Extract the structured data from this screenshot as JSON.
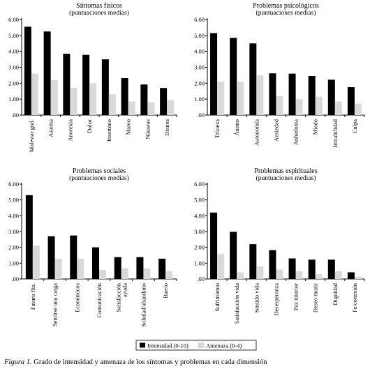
{
  "chart_data": [
    {
      "type": "bar",
      "title": "Síntomas físicos",
      "subtitle": "(puntuaciones medias)",
      "categories": [
        "Malestar gral.",
        "Astenia",
        "Anorexia",
        "Dolor",
        "Insomnio",
        "Mareo",
        "Náuseas",
        "Disnea"
      ],
      "series": [
        {
          "name": "Intensidad (0-10)",
          "values": [
            5.55,
            5.25,
            3.85,
            3.78,
            3.5,
            2.32,
            1.92,
            1.7
          ]
        },
        {
          "name": "Amenaza (0-4)",
          "values": [
            2.6,
            2.2,
            1.7,
            2.0,
            1.3,
            0.85,
            0.8,
            0.95
          ]
        }
      ],
      "yticks": [
        "6.00",
        "5.00",
        "4.00",
        "3.00",
        "2.00",
        "1.00",
        ".00"
      ],
      "ylim": [
        0,
        6
      ],
      "grid": false
    },
    {
      "type": "bar",
      "title": "Problemas psicológicos",
      "subtitle": "(puntuaciones medias)",
      "categories": [
        "Tristeza",
        "Ánimo",
        "Autonomía",
        "Ansiedad",
        "Anhedonia",
        "Miedo",
        "Irritabilidad",
        "Culpa"
      ],
      "series": [
        {
          "name": "Intensidad (0-10)",
          "values": [
            5.15,
            4.85,
            4.5,
            2.62,
            2.6,
            2.45,
            2.22,
            1.75
          ]
        },
        {
          "name": "Amenaza (0-4)",
          "values": [
            2.1,
            2.1,
            2.5,
            1.2,
            1.0,
            1.15,
            0.85,
            0.72
          ]
        }
      ],
      "yticks": [
        "6.00",
        "5.00",
        "4.00",
        "3.00",
        "2.00",
        "1.00",
        ".00"
      ],
      "ylim": [
        0,
        6
      ],
      "grid": false
    },
    {
      "type": "bar",
      "title": "Problemas sociales",
      "subtitle": "(puntuaciones medias)",
      "categories": [
        "Futuro flia.",
        "Sentirse una carga",
        "Económicos",
        "Comunicación",
        "Satisfacción ayuda",
        "Soledad/abandono",
        "Barrio"
      ],
      "series": [
        {
          "name": "Intensidad (0-10)",
          "values": [
            5.3,
            2.7,
            2.75,
            2.0,
            1.38,
            1.38,
            1.28
          ]
        },
        {
          "name": "Amenaza (0-4)",
          "values": [
            2.1,
            1.28,
            1.28,
            0.58,
            0.68,
            0.68,
            0.5
          ]
        }
      ],
      "yticks": [
        "6.00",
        "5.00",
        "4.00",
        "3.00",
        "2.00",
        "1.00",
        ".00"
      ],
      "ylim": [
        0,
        6
      ],
      "grid": false
    },
    {
      "type": "bar",
      "title": "Problemas espirituales",
      "subtitle": "(puntuaciones medias)",
      "categories": [
        "Sufrimiento",
        "Satisfacción vida",
        "Sentido vida",
        "Desesperanza",
        "Paz interior",
        "Deseo morir",
        "Dignidad",
        "Fe/conexión"
      ],
      "series": [
        {
          "name": "Intensidad (0-10)",
          "values": [
            4.2,
            2.98,
            2.2,
            1.82,
            1.3,
            1.22,
            1.22,
            0.42
          ]
        },
        {
          "name": "Amenaza (0-4)",
          "values": [
            1.58,
            0.42,
            0.8,
            0.6,
            0.5,
            0.3,
            0.5,
            0.15
          ]
        }
      ],
      "yticks": [
        "6.00",
        "5.00",
        "4.00",
        "3.00",
        "2.00",
        "1.00",
        ".00"
      ],
      "ylim": [
        0,
        6
      ],
      "grid": false
    }
  ],
  "legend": {
    "placement": "bottom-center",
    "items": [
      {
        "label": "Intensidad (0-10)",
        "color": "#000000"
      },
      {
        "label": "Amenaza (0-4)",
        "color": "#d9d9d9"
      }
    ]
  },
  "caption": {
    "label": "Figura 1.",
    "text": " Grado de intensidad y amenaza de los síntomas y problemas en cada dimensión"
  },
  "colors": {
    "intensity": "#000000",
    "threat": "#d9d9d9"
  }
}
